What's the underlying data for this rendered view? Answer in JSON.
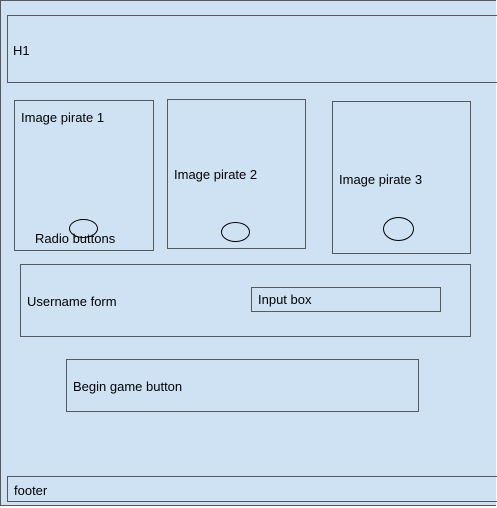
{
  "wireframe": {
    "header_label": "H1",
    "pirates": [
      {
        "label": "Image pirate 1",
        "radio_label": "Radio buttons"
      },
      {
        "label": "Image pirate 2"
      },
      {
        "label": "Image pirate 3"
      }
    ],
    "username_form": {
      "label": "Username form",
      "input_label": "Input box"
    },
    "begin_button_label": "Begin game button",
    "footer_label": "footer"
  },
  "colors": {
    "canvas_fill": "#cfe2f3",
    "outline": "#595959"
  }
}
